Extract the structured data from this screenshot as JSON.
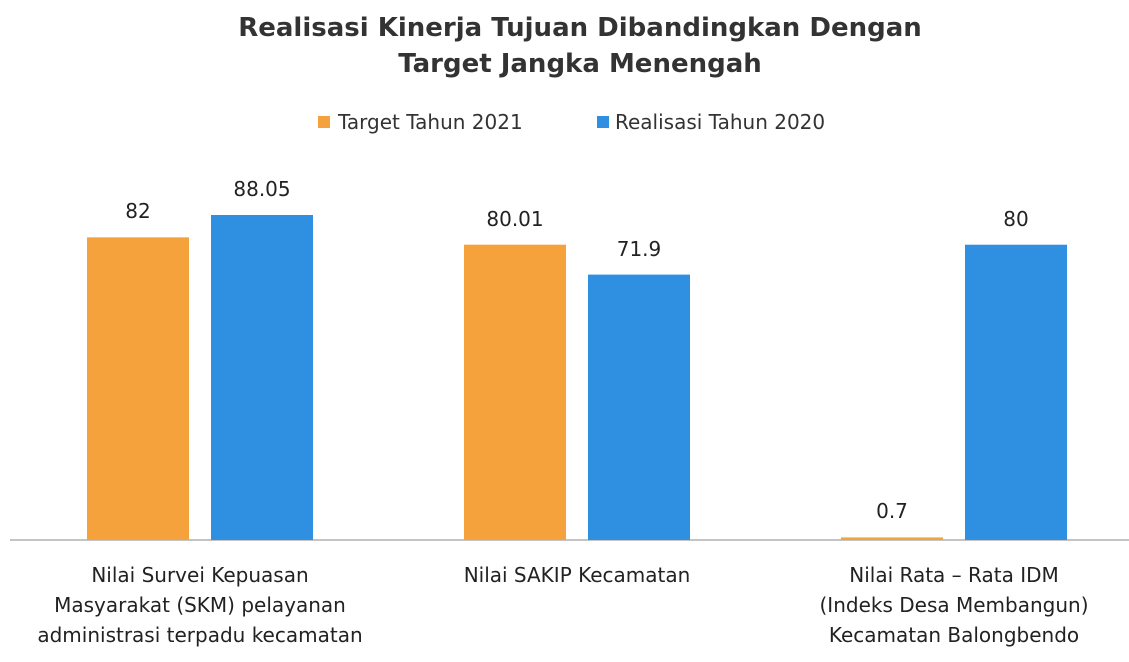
{
  "chart_data": {
    "type": "bar",
    "title": "Realisasi Kinerja Tujuan Dibandingkan Dengan\nTarget Jangka Menengah",
    "categories": [
      "Nilai Survei Kepuasan\nMasyarakat (SKM) pelayanan\nadministrasi terpadu kecamatan",
      "Nilai SAKIP Kecamatan",
      "Nilai Rata – Rata IDM\n(Indeks Desa Membangun)\nKecamatan Balongbendo"
    ],
    "series": [
      {
        "name": "Target Tahun 2021",
        "color": "#f5a23c",
        "values": [
          82,
          80.01,
          0.7
        ]
      },
      {
        "name": "Realisasi Tahun 2020",
        "color": "#2f8fe0",
        "values": [
          88.05,
          71.9,
          80
        ]
      }
    ],
    "legend": "top"
  }
}
